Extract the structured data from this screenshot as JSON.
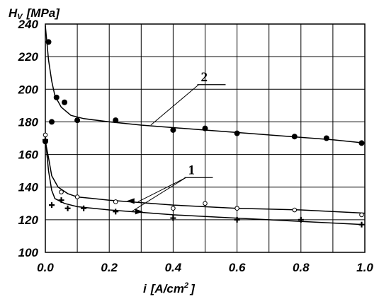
{
  "chart_data": {
    "type": "scatter",
    "ylabel": {
      "main": "H",
      "sub": "V",
      "unit": "[MPa]"
    },
    "xlabel": {
      "main": "i",
      "unit": "[A/cm",
      "sup": "2",
      "close": "]"
    },
    "xlim": [
      0,
      1.0
    ],
    "ylim": [
      100,
      240
    ],
    "grid": true,
    "xticks": [
      "0.0",
      "0.2",
      "0.4",
      "0.6",
      "0.8",
      "1.0"
    ],
    "yticks": [
      "100",
      "120",
      "140",
      "160",
      "180",
      "200",
      "220",
      "240"
    ],
    "xtick_values": [
      0,
      0.2,
      0.4,
      0.6,
      0.8,
      1.0
    ],
    "ytick_values": [
      100,
      120,
      140,
      160,
      180,
      200,
      220,
      240
    ],
    "series": [
      {
        "label": "2",
        "marker": "filled-circle",
        "points": [
          [
            0.0,
            168
          ],
          [
            0.01,
            229
          ],
          [
            0.02,
            180
          ],
          [
            0.035,
            195
          ],
          [
            0.06,
            192
          ],
          [
            0.1,
            181
          ],
          [
            0.22,
            181
          ],
          [
            0.4,
            175
          ],
          [
            0.5,
            176
          ],
          [
            0.6,
            173
          ],
          [
            0.78,
            171
          ],
          [
            0.88,
            170
          ],
          [
            0.99,
            167
          ]
        ],
        "curve": [
          [
            0.0,
            239
          ],
          [
            0.01,
            218
          ],
          [
            0.02,
            205
          ],
          [
            0.03,
            196
          ],
          [
            0.05,
            189
          ],
          [
            0.08,
            184
          ],
          [
            0.12,
            182
          ],
          [
            0.2,
            180
          ],
          [
            0.3,
            178
          ],
          [
            0.5,
            175
          ],
          [
            0.7,
            172
          ],
          [
            0.9,
            169
          ],
          [
            1.0,
            167
          ]
        ]
      },
      {
        "label": "1",
        "marker": "open-circle",
        "points": [
          [
            0.0,
            172
          ],
          [
            0.05,
            137
          ],
          [
            0.1,
            134
          ],
          [
            0.22,
            131
          ],
          [
            0.4,
            127
          ],
          [
            0.5,
            130
          ],
          [
            0.6,
            127
          ],
          [
            0.78,
            126
          ],
          [
            0.99,
            123
          ]
        ],
        "curve": [
          [
            0.0,
            168
          ],
          [
            0.01,
            158
          ],
          [
            0.02,
            147
          ],
          [
            0.04,
            140
          ],
          [
            0.07,
            136
          ],
          [
            0.1,
            134
          ],
          [
            0.2,
            132
          ],
          [
            0.4,
            129
          ],
          [
            0.6,
            127
          ],
          [
            0.8,
            126
          ],
          [
            1.0,
            124
          ]
        ]
      },
      {
        "label": "1",
        "marker": "cross",
        "points": [
          [
            0.0,
            169
          ],
          [
            0.02,
            129
          ],
          [
            0.05,
            132
          ],
          [
            0.07,
            127
          ],
          [
            0.12,
            127
          ],
          [
            0.22,
            125
          ],
          [
            0.4,
            121
          ],
          [
            0.6,
            120
          ],
          [
            0.8,
            120
          ],
          [
            0.99,
            117
          ]
        ],
        "curve": [
          [
            0.0,
            170
          ],
          [
            0.01,
            150
          ],
          [
            0.02,
            138
          ],
          [
            0.03,
            133
          ],
          [
            0.06,
            130
          ],
          [
            0.1,
            128
          ],
          [
            0.2,
            126
          ],
          [
            0.4,
            123
          ],
          [
            0.6,
            121
          ],
          [
            0.8,
            119
          ],
          [
            1.0,
            117
          ]
        ]
      }
    ],
    "annotations": [
      {
        "text": "2",
        "x": 0.48,
        "y": 205,
        "leaders": [
          [
            0.33,
            178
          ]
        ]
      },
      {
        "text": "1",
        "x": 0.44,
        "y": 148,
        "leaders": [
          [
            0.29,
            131
          ],
          [
            0.27,
            125
          ]
        ]
      }
    ]
  }
}
